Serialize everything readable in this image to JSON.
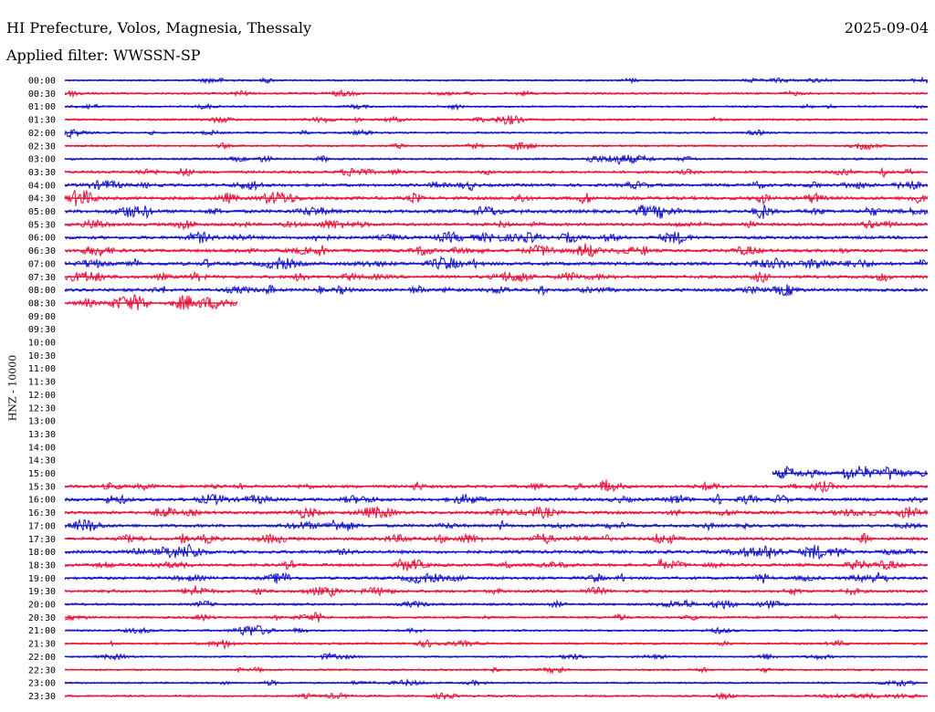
{
  "header": {
    "title": "HI Prefecture, Volos, Magnesia, Thessaly",
    "date": "2025-09-04",
    "filter": "Applied filter: WWSSN-SP"
  },
  "chart_data": {
    "type": "line",
    "title": "HI Prefecture, Volos, Magnesia, Thessaly",
    "subtitle": "Applied filter: WWSSN-SP",
    "ylabel": "HNZ - 10000",
    "xlabel": "",
    "colors": {
      "blue": "#1515c8",
      "red": "#e8143c"
    },
    "rows": [
      {
        "time": "00:00",
        "start": 0.0,
        "end": 1.0,
        "activity": 0.25,
        "color": "blue"
      },
      {
        "time": "00:30",
        "start": 0.0,
        "end": 1.0,
        "activity": 0.3,
        "color": "red"
      },
      {
        "time": "01:00",
        "start": 0.0,
        "end": 1.0,
        "activity": 0.25,
        "color": "blue"
      },
      {
        "time": "01:30",
        "start": 0.0,
        "end": 1.0,
        "activity": 0.35,
        "color": "red"
      },
      {
        "time": "02:00",
        "start": 0.0,
        "end": 1.0,
        "activity": 0.25,
        "color": "blue"
      },
      {
        "time": "02:30",
        "start": 0.0,
        "end": 1.0,
        "activity": 0.3,
        "color": "red"
      },
      {
        "time": "03:00",
        "start": 0.0,
        "end": 1.0,
        "activity": 0.35,
        "color": "blue"
      },
      {
        "time": "03:30",
        "start": 0.0,
        "end": 1.0,
        "activity": 0.55,
        "color": "red"
      },
      {
        "time": "04:00",
        "start": 0.0,
        "end": 1.0,
        "activity": 0.7,
        "color": "blue"
      },
      {
        "time": "04:30",
        "start": 0.0,
        "end": 1.0,
        "activity": 0.8,
        "color": "red"
      },
      {
        "time": "05:00",
        "start": 0.0,
        "end": 1.0,
        "activity": 0.85,
        "color": "blue"
      },
      {
        "time": "05:30",
        "start": 0.0,
        "end": 1.0,
        "activity": 0.7,
        "color": "red"
      },
      {
        "time": "06:00",
        "start": 0.0,
        "end": 1.0,
        "activity": 0.75,
        "color": "blue"
      },
      {
        "time": "06:30",
        "start": 0.0,
        "end": 1.0,
        "activity": 0.75,
        "color": "red"
      },
      {
        "time": "07:00",
        "start": 0.0,
        "end": 1.0,
        "activity": 0.85,
        "color": "blue"
      },
      {
        "time": "07:30",
        "start": 0.0,
        "end": 1.0,
        "activity": 0.75,
        "color": "red"
      },
      {
        "time": "08:00",
        "start": 0.0,
        "end": 1.0,
        "activity": 0.75,
        "color": "blue"
      },
      {
        "time": "08:30",
        "start": 0.0,
        "end": 0.2,
        "activity": 0.7,
        "color": "red"
      },
      {
        "time": "09:00"
      },
      {
        "time": "09:30"
      },
      {
        "time": "10:00"
      },
      {
        "time": "10:30"
      },
      {
        "time": "11:00"
      },
      {
        "time": "11:30"
      },
      {
        "time": "12:00"
      },
      {
        "time": "12:30"
      },
      {
        "time": "13:00"
      },
      {
        "time": "13:30"
      },
      {
        "time": "14:00"
      },
      {
        "time": "14:30"
      },
      {
        "time": "15:00",
        "start": 0.82,
        "end": 1.0,
        "activity": 0.6,
        "color": "blue"
      },
      {
        "time": "15:30",
        "start": 0.0,
        "end": 1.0,
        "activity": 0.7,
        "color": "red"
      },
      {
        "time": "16:00",
        "start": 0.0,
        "end": 1.0,
        "activity": 0.75,
        "color": "blue"
      },
      {
        "time": "16:30",
        "start": 0.0,
        "end": 1.0,
        "activity": 0.75,
        "color": "red"
      },
      {
        "time": "17:00",
        "start": 0.0,
        "end": 1.0,
        "activity": 0.75,
        "color": "blue"
      },
      {
        "time": "17:30",
        "start": 0.0,
        "end": 1.0,
        "activity": 0.75,
        "color": "red"
      },
      {
        "time": "18:00",
        "start": 0.0,
        "end": 1.0,
        "activity": 0.8,
        "color": "blue"
      },
      {
        "time": "18:30",
        "start": 0.0,
        "end": 1.0,
        "activity": 0.7,
        "color": "red"
      },
      {
        "time": "19:00",
        "start": 0.0,
        "end": 1.0,
        "activity": 0.7,
        "color": "blue"
      },
      {
        "time": "19:30",
        "start": 0.0,
        "end": 1.0,
        "activity": 0.6,
        "color": "red"
      },
      {
        "time": "20:00",
        "start": 0.0,
        "end": 1.0,
        "activity": 0.45,
        "color": "blue"
      },
      {
        "time": "20:30",
        "start": 0.0,
        "end": 1.0,
        "activity": 0.4,
        "color": "red"
      },
      {
        "time": "21:00",
        "start": 0.0,
        "end": 1.0,
        "activity": 0.3,
        "color": "blue"
      },
      {
        "time": "21:30",
        "start": 0.0,
        "end": 1.0,
        "activity": 0.35,
        "color": "red"
      },
      {
        "time": "22:00",
        "start": 0.0,
        "end": 1.0,
        "activity": 0.25,
        "color": "blue"
      },
      {
        "time": "22:30",
        "start": 0.0,
        "end": 1.0,
        "activity": 0.25,
        "color": "red"
      },
      {
        "time": "23:00",
        "start": 0.0,
        "end": 1.0,
        "activity": 0.25,
        "color": "blue"
      },
      {
        "time": "23:30",
        "start": 0.0,
        "end": 1.0,
        "activity": 0.3,
        "color": "red"
      }
    ]
  }
}
